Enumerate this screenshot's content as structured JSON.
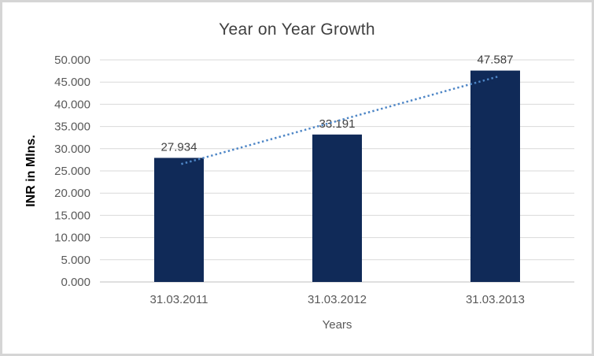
{
  "chart_data": {
    "type": "bar",
    "title": "Year on Year Growth",
    "xlabel": "Years",
    "ylabel": "INR in Mlns.",
    "categories": [
      "31.03.2011",
      "31.03.2012",
      "31.03.2013"
    ],
    "values": [
      27.934,
      33.191,
      47.587
    ],
    "data_labels": [
      "27.934",
      "33.191",
      "47.587"
    ],
    "ylim": [
      0,
      50
    ],
    "ytick_step": 5,
    "ytick_labels": [
      "0.000",
      "5.000",
      "10.000",
      "15.000",
      "20.000",
      "25.000",
      "30.000",
      "35.000",
      "40.000",
      "45.000",
      "50.000"
    ],
    "grid": true,
    "legend": "none",
    "trendline": {
      "type": "linear",
      "style": "dotted"
    },
    "colors": {
      "bar": "#102A58",
      "trendline": "#4E86C6",
      "gridline": "#D9D9D9",
      "axis_line": "#BFBFBF",
      "title_text": "#404040",
      "tick_text": "#595959",
      "data_label_text": "#404040",
      "axis_title_text": "#000000",
      "frame_border": "#D5D5D5",
      "background": "#FFFFFF"
    }
  }
}
